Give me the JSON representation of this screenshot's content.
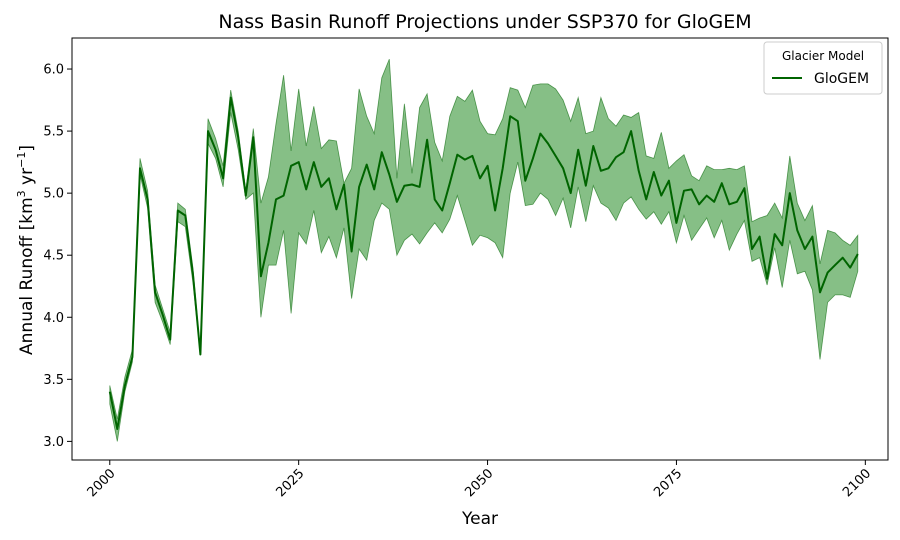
{
  "chart_data": {
    "type": "line",
    "title": "Nass Basin Runoff Projections under SSP370 for GloGEM",
    "xlabel": "Year",
    "ylabel": "Annual Runoff [km",
    "ylabel_sup1": "3",
    "ylabel_mid": " yr",
    "ylabel_sup2": "−1",
    "ylabel_end": "]",
    "xlim": [
      1995,
      2103
    ],
    "ylim": [
      2.85,
      6.25
    ],
    "xticks": [
      2000,
      2025,
      2050,
      2075,
      2100
    ],
    "yticks": [
      3.0,
      3.5,
      4.0,
      4.5,
      5.0,
      5.5,
      6.0
    ],
    "ytick_labels": [
      "3.0",
      "3.5",
      "4.0",
      "4.5",
      "5.0",
      "5.5",
      "6.0"
    ],
    "legend": {
      "title": "Glacier Model",
      "position": "top-right"
    },
    "grid": false,
    "series": [
      {
        "name": "GloGEM",
        "color": "#006400",
        "band_color": "#228B22",
        "x": [
          2000,
          2001,
          2002,
          2003,
          2004,
          2005,
          2006,
          2007,
          2008,
          2009,
          2010,
          2011,
          2012,
          2013,
          2014,
          2015,
          2016,
          2017,
          2018,
          2019,
          2020,
          2021,
          2022,
          2023,
          2024,
          2025,
          2026,
          2027,
          2028,
          2029,
          2030,
          2031,
          2032,
          2033,
          2034,
          2035,
          2036,
          2037,
          2038,
          2039,
          2040,
          2041,
          2042,
          2043,
          2044,
          2045,
          2046,
          2047,
          2048,
          2049,
          2050,
          2051,
          2052,
          2053,
          2054,
          2055,
          2056,
          2057,
          2058,
          2059,
          2060,
          2061,
          2062,
          2063,
          2064,
          2065,
          2066,
          2067,
          2068,
          2069,
          2070,
          2071,
          2072,
          2073,
          2074,
          2075,
          2076,
          2077,
          2078,
          2079,
          2080,
          2081,
          2082,
          2083,
          2084,
          2085,
          2086,
          2087,
          2088,
          2089,
          2090,
          2091,
          2092,
          2093,
          2094,
          2095,
          2096,
          2097,
          2098,
          2099
        ],
        "mean": [
          3.4,
          3.1,
          3.45,
          3.68,
          5.2,
          4.95,
          4.2,
          4.02,
          3.82,
          4.86,
          4.82,
          4.35,
          3.7,
          5.5,
          5.35,
          5.12,
          5.77,
          5.45,
          4.98,
          5.45,
          4.33,
          4.6,
          4.95,
          4.98,
          5.22,
          5.25,
          5.03,
          5.25,
          5.05,
          5.12,
          4.87,
          5.07,
          4.53,
          5.05,
          5.23,
          5.03,
          5.33,
          5.15,
          4.93,
          5.06,
          5.07,
          5.05,
          5.43,
          4.95,
          4.86,
          5.08,
          5.31,
          5.27,
          5.3,
          5.12,
          5.22,
          4.86,
          5.2,
          5.62,
          5.58,
          5.1,
          5.28,
          5.48,
          5.4,
          5.3,
          5.2,
          5.0,
          5.35,
          5.06,
          5.38,
          5.18,
          5.2,
          5.29,
          5.33,
          5.5,
          5.18,
          4.95,
          5.17,
          4.98,
          5.1,
          4.76,
          5.02,
          5.03,
          4.91,
          4.98,
          4.93,
          5.08,
          4.91,
          4.93,
          5.04,
          4.55,
          4.65,
          4.31,
          4.67,
          4.58,
          5.0,
          4.7,
          4.55,
          4.65,
          4.2,
          4.36,
          4.42,
          4.48,
          4.4,
          4.51
        ],
        "lower": [
          3.3,
          3.0,
          3.4,
          3.64,
          5.15,
          4.88,
          4.12,
          3.96,
          3.78,
          4.77,
          4.73,
          4.28,
          3.7,
          5.4,
          5.28,
          5.05,
          5.65,
          5.35,
          4.95,
          5.0,
          4.0,
          4.42,
          4.42,
          4.7,
          4.03,
          4.68,
          4.59,
          4.86,
          4.52,
          4.65,
          4.48,
          4.72,
          4.15,
          4.55,
          4.46,
          4.78,
          4.92,
          4.87,
          4.5,
          4.62,
          4.67,
          4.59,
          4.68,
          4.76,
          4.68,
          4.79,
          4.98,
          4.78,
          4.58,
          4.66,
          4.64,
          4.6,
          4.48,
          5.0,
          5.25,
          4.9,
          4.91,
          5.0,
          4.95,
          4.82,
          4.96,
          4.72,
          5.05,
          4.77,
          5.06,
          4.92,
          4.88,
          4.78,
          4.92,
          4.97,
          4.87,
          4.79,
          4.85,
          4.75,
          4.85,
          4.6,
          4.82,
          4.62,
          4.71,
          4.8,
          4.64,
          4.78,
          4.54,
          4.67,
          4.78,
          4.45,
          4.48,
          4.26,
          4.56,
          4.24,
          4.62,
          4.35,
          4.37,
          4.22,
          3.66,
          4.12,
          4.18,
          4.18,
          4.16,
          4.37
        ],
        "upper": [
          3.45,
          3.18,
          3.52,
          3.74,
          5.28,
          5.02,
          4.26,
          4.07,
          3.88,
          4.92,
          4.87,
          4.4,
          3.72,
          5.6,
          5.44,
          5.22,
          5.83,
          5.5,
          5.02,
          5.52,
          4.92,
          5.13,
          5.56,
          5.95,
          5.34,
          5.84,
          5.38,
          5.7,
          5.36,
          5.43,
          5.42,
          5.08,
          5.2,
          5.84,
          5.62,
          5.48,
          5.93,
          6.08,
          5.12,
          5.72,
          5.16,
          5.69,
          5.8,
          5.41,
          5.26,
          5.62,
          5.78,
          5.74,
          5.83,
          5.58,
          5.48,
          5.47,
          5.6,
          5.85,
          5.83,
          5.69,
          5.87,
          5.88,
          5.88,
          5.84,
          5.75,
          5.58,
          5.77,
          5.48,
          5.5,
          5.77,
          5.6,
          5.54,
          5.63,
          5.61,
          5.65,
          5.3,
          5.28,
          5.49,
          5.2,
          5.26,
          5.31,
          5.14,
          5.1,
          5.22,
          5.19,
          5.19,
          5.2,
          5.19,
          5.22,
          4.77,
          4.8,
          4.82,
          4.92,
          4.8,
          5.3,
          4.92,
          4.78,
          4.9,
          4.43,
          4.7,
          4.68,
          4.62,
          4.58,
          4.66
        ]
      }
    ]
  }
}
